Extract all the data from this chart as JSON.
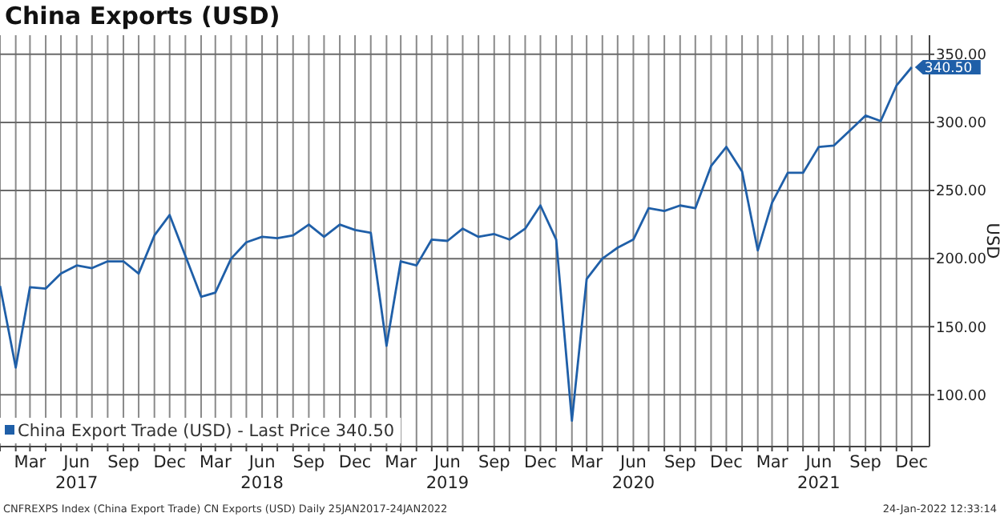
{
  "chart_data": {
    "type": "line",
    "title": "China Exports (USD)",
    "ylabel": "USD",
    "x": [
      "2017-01",
      "2017-02",
      "2017-03",
      "2017-04",
      "2017-05",
      "2017-06",
      "2017-07",
      "2017-08",
      "2017-09",
      "2017-10",
      "2017-11",
      "2017-12",
      "2018-01",
      "2018-02",
      "2018-03",
      "2018-04",
      "2018-05",
      "2018-06",
      "2018-07",
      "2018-08",
      "2018-09",
      "2018-10",
      "2018-11",
      "2018-12",
      "2019-01",
      "2019-02",
      "2019-03",
      "2019-04",
      "2019-05",
      "2019-06",
      "2019-07",
      "2019-08",
      "2019-09",
      "2019-10",
      "2019-11",
      "2019-12",
      "2020-01",
      "2020-02",
      "2020-03",
      "2020-04",
      "2020-05",
      "2020-06",
      "2020-07",
      "2020-08",
      "2020-09",
      "2020-10",
      "2020-11",
      "2020-12",
      "2021-01",
      "2021-02",
      "2021-03",
      "2021-04",
      "2021-05",
      "2021-06",
      "2021-07",
      "2021-08",
      "2021-09",
      "2021-10",
      "2021-11",
      "2021-12"
    ],
    "series": [
      {
        "name": "China Export Trade (USD) - Last Price 340.50",
        "color": "#1f5fa8",
        "values": [
          180,
          120,
          179,
          178,
          189,
          195,
          193,
          198,
          198,
          189,
          217,
          232,
          202,
          172,
          175,
          200,
          212,
          216,
          215,
          217,
          225,
          216,
          225,
          221,
          219,
          136,
          198,
          195,
          214,
          213,
          222,
          216,
          218,
          214,
          222,
          239,
          214,
          81,
          185,
          200,
          208,
          214,
          237,
          235,
          239,
          237,
          268,
          282,
          264,
          206,
          241,
          263,
          263,
          282,
          283,
          294,
          305,
          301,
          327,
          340.5
        ],
        "value_labels": [
          null,
          null,
          null,
          null,
          null,
          null,
          null,
          null,
          null,
          null,
          null,
          null,
          null,
          null,
          null,
          null,
          null,
          null,
          null,
          null,
          null,
          null,
          null,
          null,
          null,
          null,
          null,
          null,
          null,
          null,
          null,
          null,
          null,
          null,
          null,
          null,
          null,
          null,
          null,
          null,
          null,
          null,
          null,
          null,
          null,
          null,
          null,
          null,
          null,
          null,
          null,
          null,
          null,
          null,
          null,
          null,
          null,
          null,
          null,
          "340.50"
        ]
      }
    ],
    "xlim": [
      "2017-01",
      "2022-01-05"
    ],
    "xticks": [
      {
        "value": "2017-01",
        "label": null
      },
      {
        "value": "2017-02",
        "label": null
      },
      {
        "value": "2017-03",
        "label": "Mar"
      },
      {
        "value": "2017-04",
        "label": null
      },
      {
        "value": "2017-05",
        "label": null
      },
      {
        "value": "2017-06",
        "label": "Jun 2017"
      },
      {
        "value": "2017-07",
        "label": null
      },
      {
        "value": "2017-08",
        "label": null
      },
      {
        "value": "2017-09",
        "label": "Sep"
      },
      {
        "value": "2017-10",
        "label": null
      },
      {
        "value": "2017-11",
        "label": null
      },
      {
        "value": "2017-12",
        "label": "Dec"
      },
      {
        "value": "2018-01",
        "label": null
      },
      {
        "value": "2018-02",
        "label": null
      },
      {
        "value": "2018-03",
        "label": "Mar"
      },
      {
        "value": "2018-04",
        "label": null
      },
      {
        "value": "2018-05",
        "label": null
      },
      {
        "value": "2018-06",
        "label": "Jun 2018"
      },
      {
        "value": "2018-07",
        "label": null
      },
      {
        "value": "2018-08",
        "label": null
      },
      {
        "value": "2018-09",
        "label": "Sep"
      },
      {
        "value": "2018-10",
        "label": null
      },
      {
        "value": "2018-11",
        "label": null
      },
      {
        "value": "2018-12",
        "label": "Dec"
      },
      {
        "value": "2019-01",
        "label": null
      },
      {
        "value": "2019-02",
        "label": null
      },
      {
        "value": "2019-03",
        "label": "Mar"
      },
      {
        "value": "2019-04",
        "label": null
      },
      {
        "value": "2019-05",
        "label": null
      },
      {
        "value": "2019-06",
        "label": "Jun 2019"
      },
      {
        "value": "2019-07",
        "label": null
      },
      {
        "value": "2019-08",
        "label": null
      },
      {
        "value": "2019-09",
        "label": "Sep"
      },
      {
        "value": "2019-10",
        "label": null
      },
      {
        "value": "2019-11",
        "label": null
      },
      {
        "value": "2019-12",
        "label": "Dec"
      },
      {
        "value": "2020-01",
        "label": null
      },
      {
        "value": "2020-02",
        "label": null
      },
      {
        "value": "2020-03",
        "label": "Mar"
      },
      {
        "value": "2020-04",
        "label": null
      },
      {
        "value": "2020-05",
        "label": null
      },
      {
        "value": "2020-06",
        "label": "Jun 2020"
      },
      {
        "value": "2020-07",
        "label": null
      },
      {
        "value": "2020-08",
        "label": null
      },
      {
        "value": "2020-09",
        "label": "Sep"
      },
      {
        "value": "2020-10",
        "label": null
      },
      {
        "value": "2020-11",
        "label": null
      },
      {
        "value": "2020-12",
        "label": "Dec"
      },
      {
        "value": "2021-01",
        "label": null
      },
      {
        "value": "2021-02",
        "label": null
      },
      {
        "value": "2021-03",
        "label": "Mar"
      },
      {
        "value": "2021-04",
        "label": null
      },
      {
        "value": "2021-05",
        "label": null
      },
      {
        "value": "2021-06",
        "label": "Jun 2021"
      },
      {
        "value": "2021-07",
        "label": null
      },
      {
        "value": "2021-08",
        "label": null
      },
      {
        "value": "2021-09",
        "label": "Sep"
      },
      {
        "value": "2021-10",
        "label": null
      },
      {
        "value": "2021-11",
        "label": null
      },
      {
        "value": "2021-12",
        "label": "Dec"
      }
    ],
    "ylim": [
      62,
      364
    ],
    "yticks": [
      {
        "value": 100,
        "label": "100.00"
      },
      {
        "value": 150,
        "label": "150.00"
      },
      {
        "value": 200,
        "label": "200.00"
      },
      {
        "value": 250,
        "label": "250.00"
      },
      {
        "value": 300,
        "label": "300.00"
      },
      {
        "value": 350,
        "label": "350.00"
      }
    ],
    "grid": true,
    "legend": "bottom left",
    "annotations": [
      "CNFREXPS Index (China Export Trade) CN Exports (USD) Daily 25JAN2017-24JAN2022",
      "24-Jan-2022 12:33:14"
    ]
  }
}
